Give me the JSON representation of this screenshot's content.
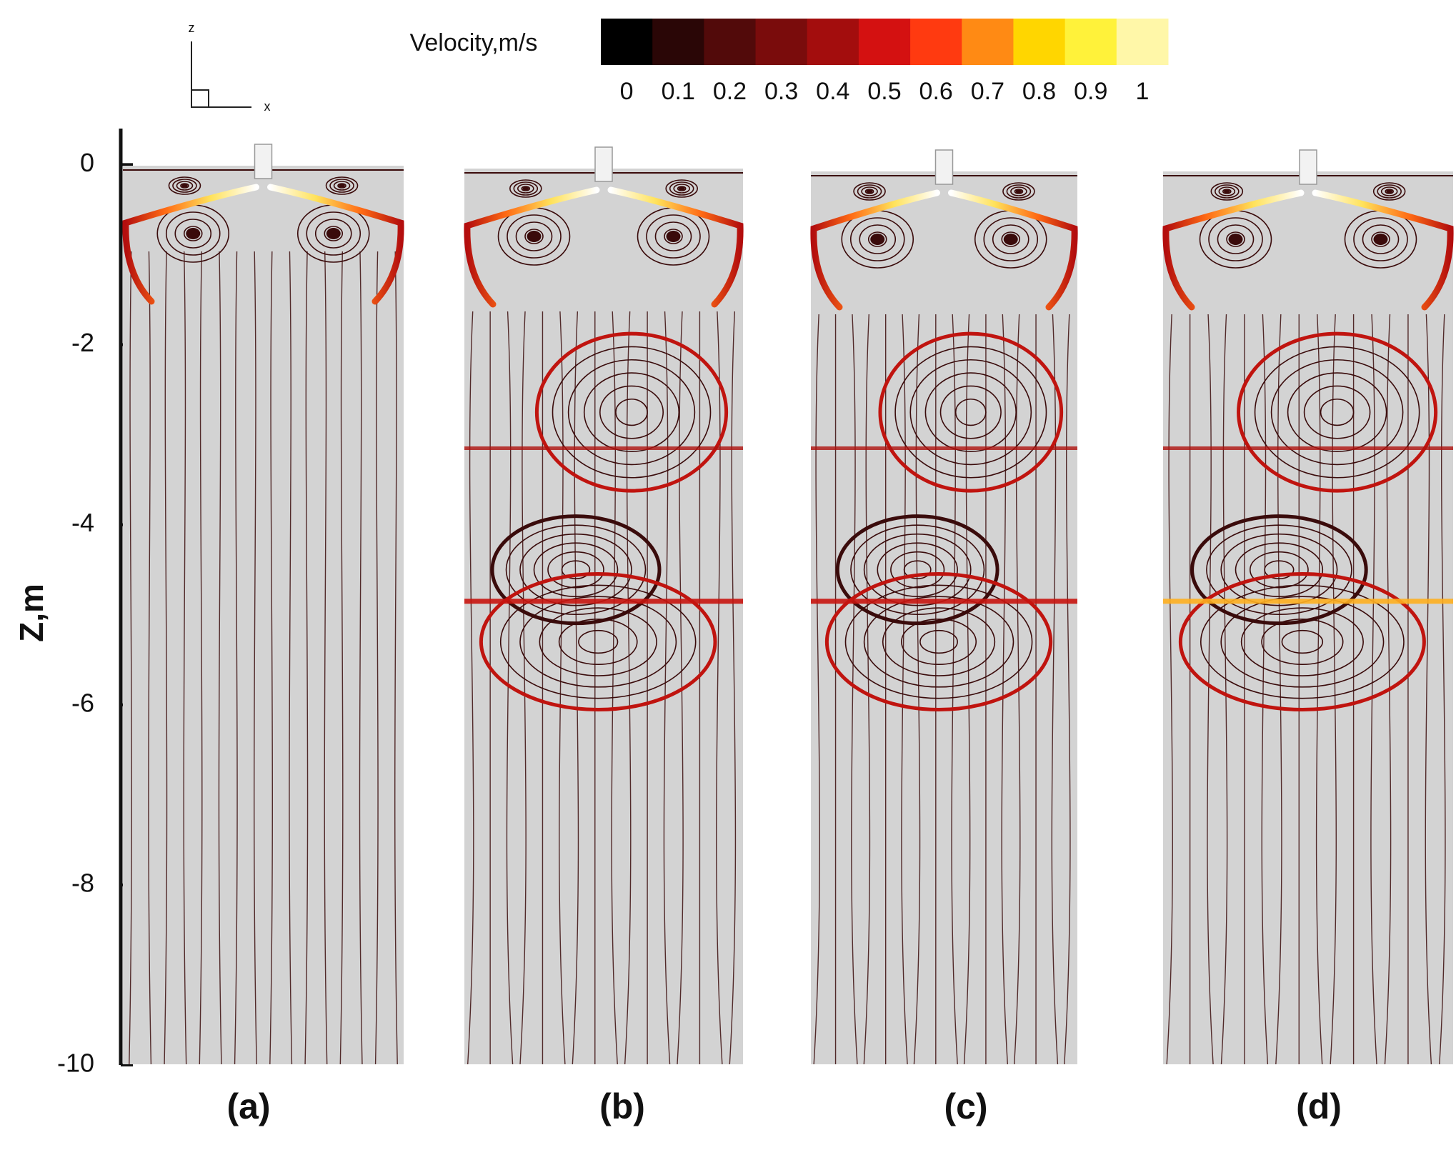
{
  "chart_data": {
    "type": "streamline-panels",
    "colorbar": {
      "title": "Velocity,m/s",
      "ticks": [
        0,
        0.1,
        0.2,
        0.3,
        0.4,
        0.5,
        0.6,
        0.7,
        0.8,
        0.9,
        1
      ],
      "colors": [
        "#000000",
        "#2a0606",
        "#520a0a",
        "#7a0c0c",
        "#a30d0d",
        "#d41111",
        "#ff3a10",
        "#ff8a14",
        "#ffd600",
        "#fff23a",
        "#fff7a8"
      ]
    },
    "orientation": {
      "z_label": "z",
      "x_label": "x"
    },
    "ylabel": "Z,m",
    "ylim": [
      -10,
      0.4
    ],
    "yticks": [
      0,
      -2,
      -4,
      -6,
      -8,
      -10
    ],
    "panels": [
      {
        "label": "(a)",
        "vortex_rings": false
      },
      {
        "label": "(b)",
        "vortex_rings": true
      },
      {
        "label": "(c)",
        "vortex_rings": true
      },
      {
        "label": "(d)",
        "vortex_rings": true
      }
    ]
  }
}
